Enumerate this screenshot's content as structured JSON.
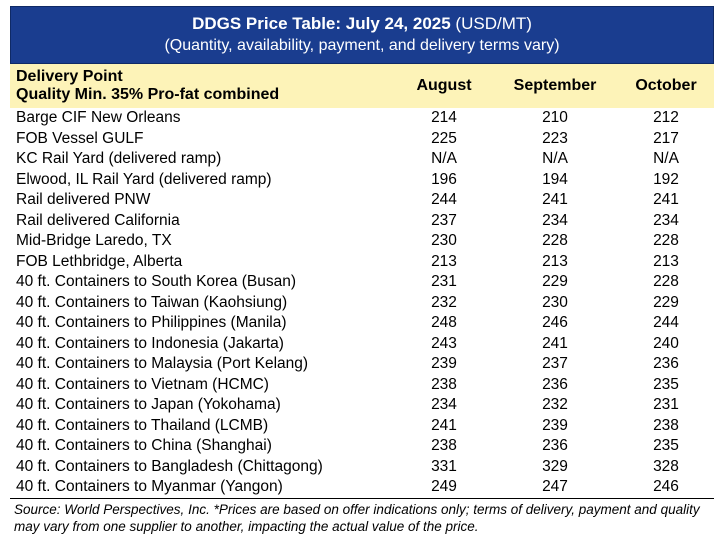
{
  "title": {
    "bold": "DDGS Price Table: July 24, 2025",
    "units": "(USD/MT)",
    "subtitle": "(Quantity, availability, payment, and delivery terms vary)"
  },
  "header": {
    "delivery_point": "Delivery Point",
    "quality": "Quality Min. 35% Pro-fat combined",
    "months": [
      "August",
      "September",
      "October"
    ]
  },
  "rows": [
    {
      "point": "Barge CIF New Orleans",
      "aug": "214",
      "sep": "210",
      "oct": "212"
    },
    {
      "point": "FOB Vessel GULF",
      "aug": "225",
      "sep": "223",
      "oct": "217"
    },
    {
      "point": "KC Rail Yard (delivered ramp)",
      "aug": "N/A",
      "sep": "N/A",
      "oct": "N/A"
    },
    {
      "point": "Elwood, IL Rail Yard (delivered ramp)",
      "aug": "196",
      "sep": "194",
      "oct": "192"
    },
    {
      "point": "Rail delivered PNW",
      "aug": "244",
      "sep": "241",
      "oct": "241"
    },
    {
      "point": "Rail delivered California",
      "aug": "237",
      "sep": "234",
      "oct": "234"
    },
    {
      "point": "Mid-Bridge Laredo, TX",
      "aug": "230",
      "sep": "228",
      "oct": "228"
    },
    {
      "point": "FOB Lethbridge, Alberta",
      "aug": "213",
      "sep": "213",
      "oct": "213"
    },
    {
      "point": "40 ft. Containers to South Korea (Busan)",
      "aug": "231",
      "sep": "229",
      "oct": "228"
    },
    {
      "point": "40 ft. Containers to Taiwan (Kaohsiung)",
      "aug": "232",
      "sep": "230",
      "oct": "229"
    },
    {
      "point": "40 ft. Containers to Philippines (Manila)",
      "aug": "248",
      "sep": "246",
      "oct": "244"
    },
    {
      "point": "40 ft. Containers to Indonesia (Jakarta)",
      "aug": "243",
      "sep": "241",
      "oct": "240"
    },
    {
      "point": "40 ft. Containers to Malaysia (Port Kelang)",
      "aug": "239",
      "sep": "237",
      "oct": "236"
    },
    {
      "point": "40 ft. Containers to Vietnam (HCMC)",
      "aug": "238",
      "sep": "236",
      "oct": "235"
    },
    {
      "point": "40 ft. Containers to Japan (Yokohama)",
      "aug": "234",
      "sep": "232",
      "oct": "231"
    },
    {
      "point": "40 ft. Containers to Thailand (LCMB)",
      "aug": "241",
      "sep": "239",
      "oct": "238"
    },
    {
      "point": "40 ft. Containers to China (Shanghai)",
      "aug": "238",
      "sep": "236",
      "oct": "235"
    },
    {
      "point": "40 ft. Containers to Bangladesh (Chittagong)",
      "aug": "331",
      "sep": "329",
      "oct": "328"
    },
    {
      "point": "40 ft. Containers to Myanmar (Yangon)",
      "aug": "249",
      "sep": "247",
      "oct": "246"
    }
  ],
  "footnote": {
    "source": "Source: World Perspectives, Inc.",
    "note": "*Prices are based on offer indications only; terms of delivery, payment and quality may vary from one supplier to another, impacting the actual value of the price."
  },
  "colors": {
    "title_bg": "#1a3d8f",
    "header_bg": "#fdf3b8"
  }
}
